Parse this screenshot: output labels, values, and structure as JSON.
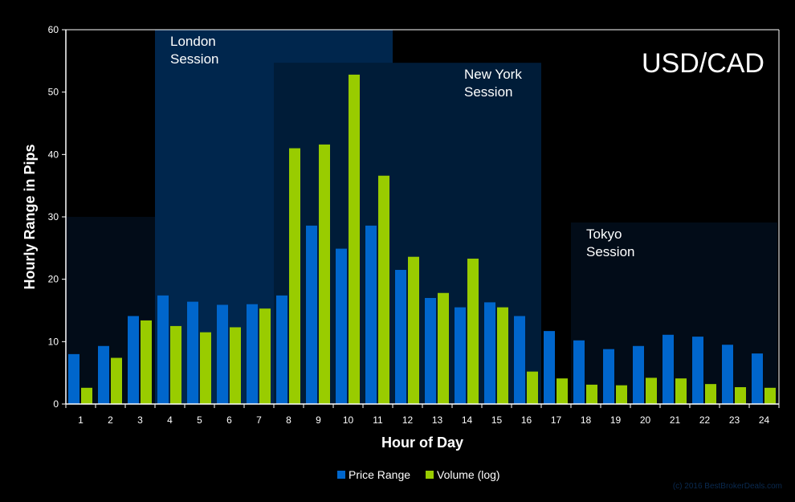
{
  "chart_data": {
    "type": "bar",
    "title": "USD/CAD",
    "xlabel": "Hour of Day",
    "ylabel": "Hourly Range in Pips",
    "ylim": [
      0,
      60
    ],
    "yticks": [
      0,
      10,
      20,
      30,
      40,
      50,
      60
    ],
    "grid": false,
    "legend": "bottom",
    "categories": [
      "1",
      "2",
      "3",
      "4",
      "5",
      "6",
      "7",
      "8",
      "9",
      "10",
      "11",
      "12",
      "13",
      "14",
      "15",
      "16",
      "17",
      "18",
      "19",
      "20",
      "21",
      "22",
      "23",
      "24"
    ],
    "series": [
      {
        "name": "Price Range",
        "color": "#0066cc",
        "values": [
          8.0,
          9.3,
          14.1,
          17.4,
          16.4,
          15.9,
          16.0,
          17.4,
          28.6,
          24.9,
          28.6,
          21.5,
          17.0,
          15.5,
          16.3,
          14.1,
          11.7,
          10.2,
          8.8,
          9.3,
          11.1,
          10.8,
          9.5,
          8.1
        ]
      },
      {
        "name": "Volume (log)",
        "color": "#99cc00",
        "values": [
          2.6,
          7.4,
          13.4,
          12.5,
          11.5,
          12.3,
          15.3,
          41.0,
          41.6,
          52.8,
          36.6,
          23.6,
          17.8,
          23.3,
          15.5,
          5.2,
          4.1,
          3.1,
          3.0,
          4.2,
          4.1,
          3.2,
          2.7,
          2.6
        ]
      }
    ],
    "sessions": [
      {
        "label": "",
        "from_hour": 1,
        "to_hour": 4,
        "height": 30,
        "color": "#020c18"
      },
      {
        "label_lines": [
          "London",
          "Session"
        ],
        "from_hour": 4,
        "to_hour": 11,
        "height": 60,
        "color": "#00264d"
      },
      {
        "label_lines": [
          "New York",
          "Session"
        ],
        "from_hour": 8,
        "to_hour": 16,
        "height": 54.7,
        "color": "#001c38"
      },
      {
        "label_lines": [
          "Tokyo",
          "Session"
        ],
        "from_hour": 18,
        "to_hour": 24,
        "height": 29.1,
        "color": "#020c18"
      }
    ]
  },
  "footer": {
    "copyright": "(c) 2016 BestBrokerDeals.com"
  }
}
